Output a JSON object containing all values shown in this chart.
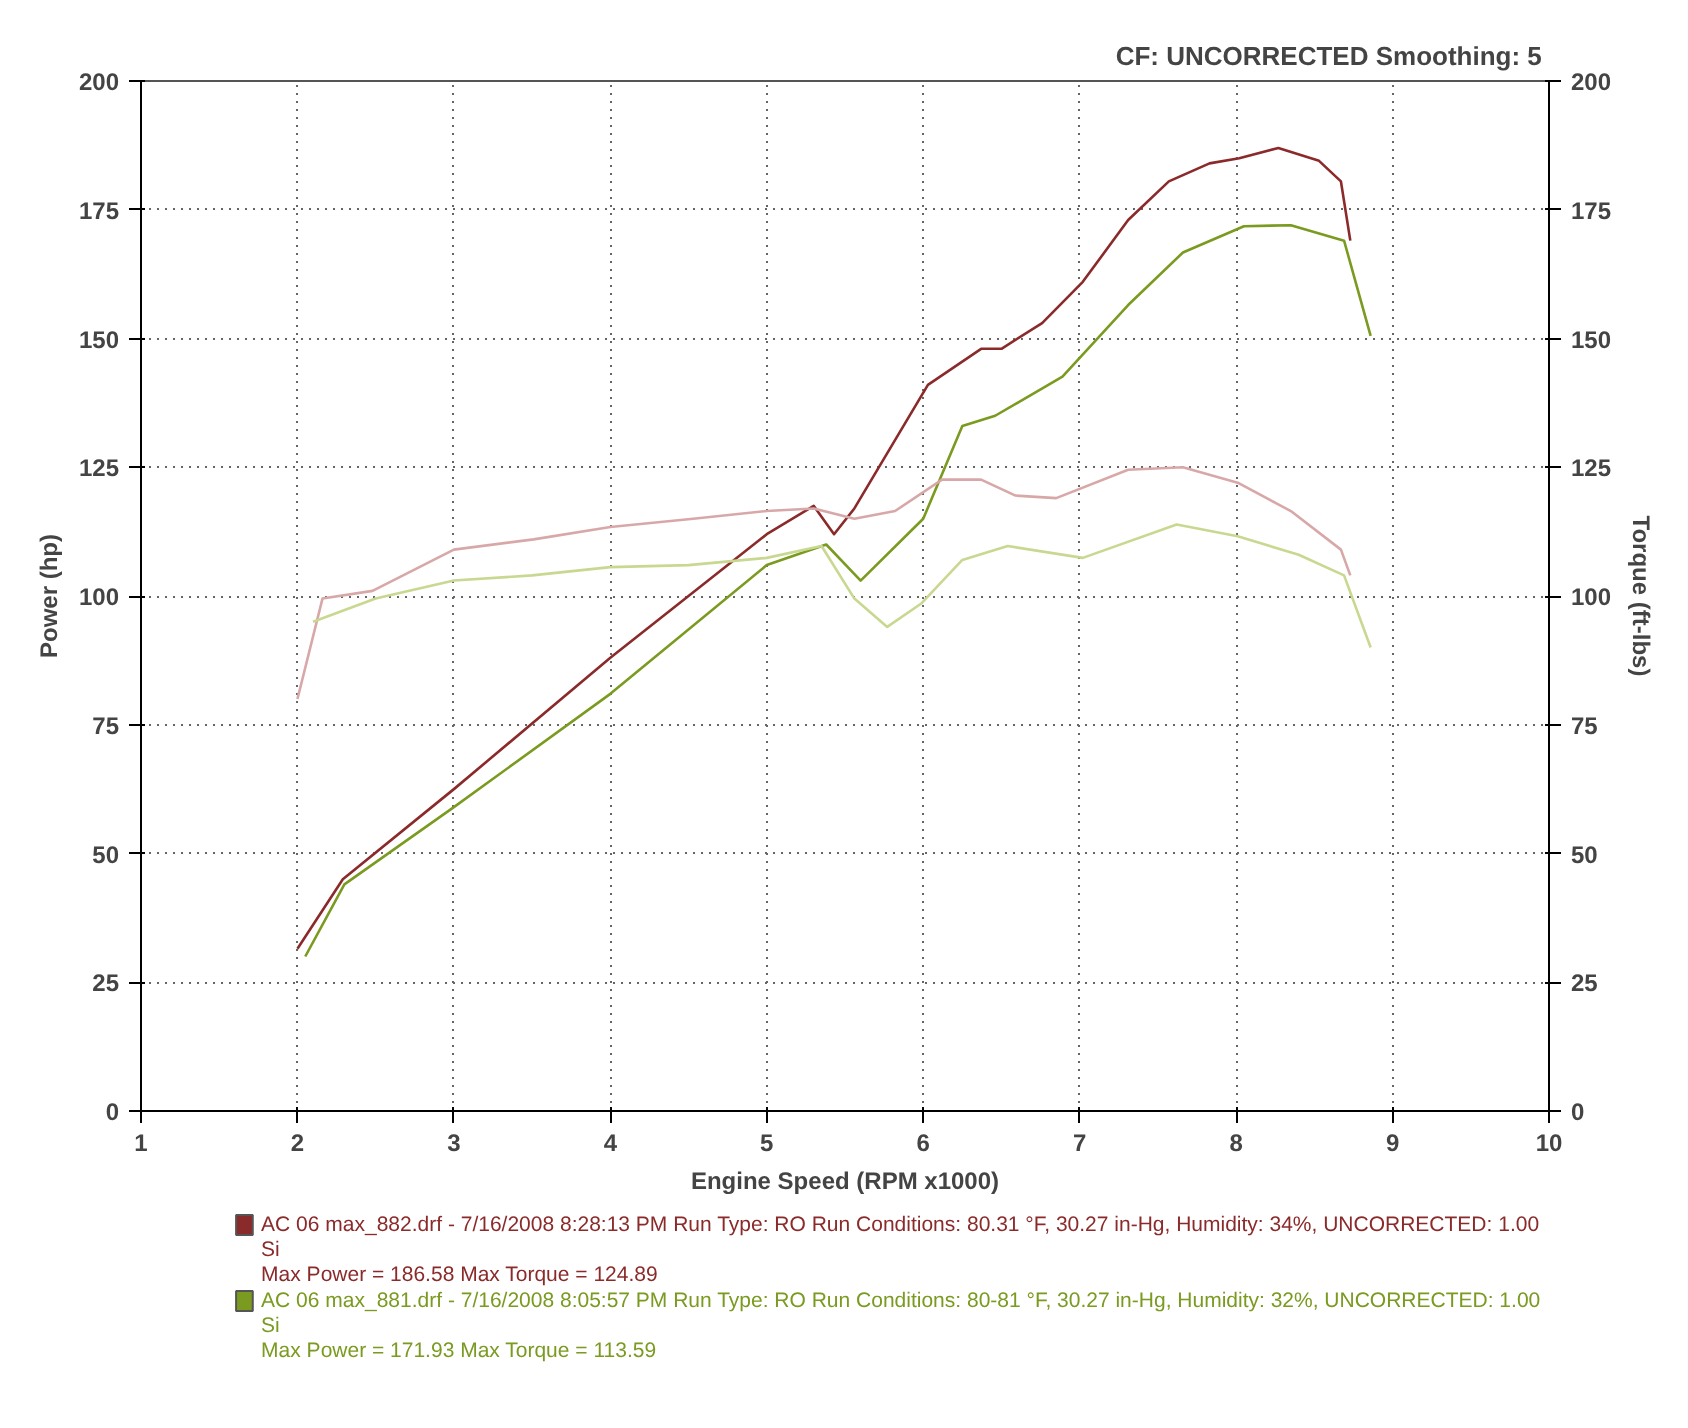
{
  "chart_data": {
    "type": "line",
    "title": "CF: UNCORRECTED  Smoothing: 5",
    "xlabel": "Engine Speed (RPM x1000)",
    "ylabel": "Power (hp)",
    "y2label": "Torque (ft-lbs)",
    "xlim": [
      1,
      10
    ],
    "xticks": [
      1,
      2,
      3,
      4,
      5,
      6,
      7,
      8,
      9,
      10
    ],
    "ylim": [
      0,
      200
    ],
    "yticks": [
      0,
      25,
      50,
      75,
      100,
      125,
      150,
      175,
      200
    ],
    "y2lim": [
      0,
      200
    ],
    "y2ticks": [
      0,
      25,
      50,
      75,
      100,
      125,
      150,
      175,
      200
    ],
    "grid": true,
    "legend": "bottom",
    "series": [
      {
        "name": "AC 06 max_882.drf - 7/16/2008 8:28:13 PM  Run Type: RO  Run Conditions: 80.31 °F, 30.27 in-Hg,  Humidity:  34%, UNCORRECTED: 1.00\nSi\nMax Power = 186.58  Max Torque = 124.89",
        "color": "#8b2a2a",
        "x": [
          2.0,
          2.29,
          3.0,
          4.0,
          5.0,
          5.3,
          5.43,
          5.56,
          6.03,
          6.37,
          6.5,
          6.76,
          7.02,
          7.31,
          7.57,
          7.83,
          8.02,
          8.27,
          8.53,
          8.67,
          8.73
        ],
        "values": [
          31.5,
          45,
          62.5,
          88,
          112,
          117.5,
          112,
          117,
          141,
          148,
          148,
          153,
          161,
          173,
          180.5,
          184,
          185,
          187,
          184.5,
          180.5,
          169
        ]
      },
      {
        "name": "AC 06 max_881.drf - 7/16/2008 8:05:57 PM  Run Type: RO  Run Conditions: 80-81 °F, 30.27 in-Hg,  Humidity:  32%, UNCORRECTED: 1.00\nSi\nMax Power = 171.93  Max Torque = 113.59",
        "color": "#7a9a20",
        "x": [
          2.05,
          2.3,
          3.0,
          4.0,
          5.0,
          5.38,
          5.6,
          6.0,
          6.25,
          6.46,
          6.89,
          7.31,
          7.66,
          8.05,
          8.35,
          8.69,
          8.86
        ],
        "values": [
          30,
          44,
          59,
          81,
          106,
          110,
          103,
          115,
          133,
          135,
          142.6,
          156.5,
          166.7,
          171.8,
          172,
          169,
          150.5
        ]
      },
      {
        "color": "#d8a8a8",
        "x": [
          2.0,
          2.16,
          2.48,
          3.0,
          3.51,
          4.0,
          4.53,
          5.0,
          5.3,
          5.56,
          5.82,
          6.12,
          6.37,
          6.59,
          6.85,
          7.31,
          7.66,
          8.01,
          8.35,
          8.67,
          8.73
        ],
        "values": [
          80,
          99.5,
          101,
          109,
          111,
          113.4,
          115,
          116.5,
          117,
          115,
          116.5,
          122.6,
          122.6,
          119.5,
          119,
          124.5,
          125,
          122,
          116.5,
          109,
          104
        ]
      },
      {
        "color": "#c8d890",
        "x": [
          2.1,
          2.5,
          3.0,
          3.5,
          4.0,
          4.5,
          5.0,
          5.35,
          5.56,
          5.77,
          5.99,
          6.25,
          6.54,
          7.02,
          7.62,
          8.01,
          8.4,
          8.69,
          8.86
        ],
        "values": [
          95,
          99.5,
          103,
          104,
          105.6,
          106,
          107.4,
          109.7,
          99.5,
          94,
          98.6,
          107,
          109.7,
          107.4,
          113.9,
          111.6,
          108,
          104,
          90
        ]
      }
    ]
  }
}
